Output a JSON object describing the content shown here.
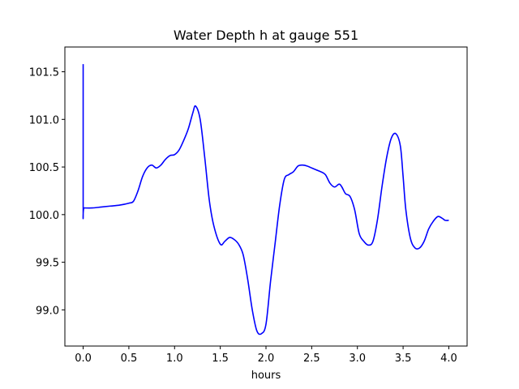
{
  "chart_data": {
    "type": "line",
    "title": "Water Depth h at gauge 551",
    "xlabel": "hours",
    "ylabel": "",
    "xlim": [
      -0.2,
      4.2
    ],
    "ylim": [
      98.62,
      101.76
    ],
    "xticks": [
      0.0,
      0.5,
      1.0,
      1.5,
      2.0,
      2.5,
      3.0,
      3.5,
      4.0
    ],
    "xtick_labels": [
      "0.0",
      "0.5",
      "1.0",
      "1.5",
      "2.0",
      "2.5",
      "3.0",
      "3.5",
      "4.0"
    ],
    "yticks": [
      99.0,
      99.5,
      100.0,
      100.5,
      101.0,
      101.5
    ],
    "ytick_labels": [
      "99.0",
      "99.5",
      "100.0",
      "100.5",
      "101.0",
      "101.5"
    ],
    "grid": false,
    "series": [
      {
        "color": "#0000ff",
        "x": [
          0.0,
          0.0,
          0.01,
          0.1,
          0.2,
          0.3,
          0.4,
          0.5,
          0.55,
          0.6,
          0.65,
          0.7,
          0.75,
          0.8,
          0.85,
          0.9,
          0.95,
          1.0,
          1.05,
          1.1,
          1.15,
          1.2,
          1.23,
          1.28,
          1.33,
          1.38,
          1.43,
          1.5,
          1.55,
          1.6,
          1.65,
          1.7,
          1.75,
          1.8,
          1.85,
          1.9,
          1.95,
          2.0,
          2.05,
          2.1,
          2.15,
          2.2,
          2.25,
          2.3,
          2.35,
          2.4,
          2.45,
          2.5,
          2.55,
          2.6,
          2.65,
          2.7,
          2.75,
          2.8,
          2.83,
          2.87,
          2.92,
          2.97,
          3.02,
          3.07,
          3.12,
          3.17,
          3.22,
          3.27,
          3.32,
          3.37,
          3.42,
          3.47,
          3.5,
          3.53,
          3.58,
          3.63,
          3.68,
          3.73,
          3.78,
          3.83,
          3.88,
          3.93,
          3.96,
          4.0
        ],
        "y": [
          101.58,
          100.07,
          100.07,
          100.07,
          100.08,
          100.09,
          100.1,
          100.12,
          100.14,
          100.25,
          100.4,
          100.49,
          100.52,
          100.49,
          100.52,
          100.58,
          100.62,
          100.63,
          100.68,
          100.78,
          100.9,
          101.07,
          101.14,
          101.0,
          100.6,
          100.15,
          99.88,
          99.69,
          99.72,
          99.76,
          99.74,
          99.69,
          99.58,
          99.32,
          99.0,
          98.78,
          98.75,
          98.85,
          99.3,
          99.7,
          100.1,
          100.37,
          100.42,
          100.45,
          100.51,
          100.52,
          100.51,
          100.49,
          100.47,
          100.45,
          100.42,
          100.33,
          100.29,
          100.32,
          100.29,
          100.22,
          100.19,
          100.05,
          99.8,
          99.72,
          99.68,
          99.72,
          99.95,
          100.3,
          100.6,
          100.8,
          100.85,
          100.72,
          100.4,
          100.05,
          99.75,
          99.65,
          99.65,
          99.72,
          99.85,
          99.93,
          99.98,
          99.96,
          99.94,
          99.94
        ]
      }
    ]
  }
}
